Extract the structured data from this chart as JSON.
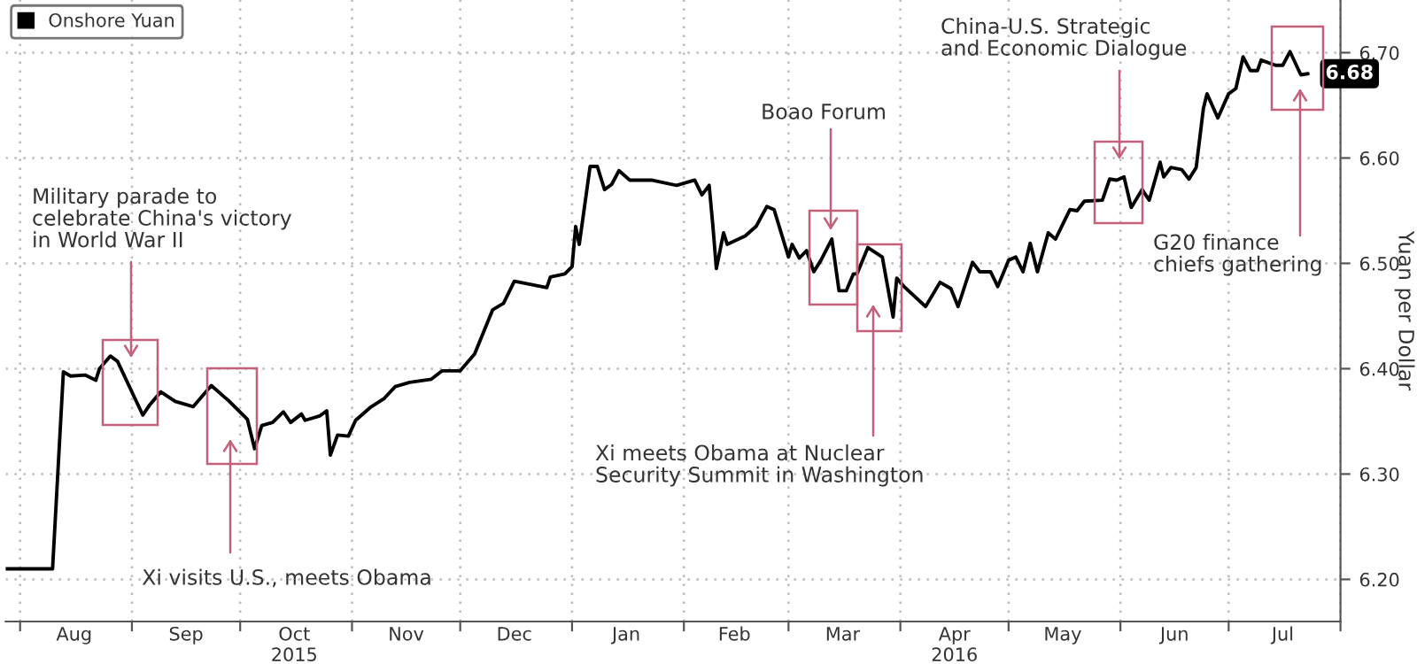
{
  "chart_data": {
    "type": "line",
    "series": [
      {
        "name": "Onshore Yuan",
        "color": "#000000",
        "x": [
          "2015-07-28",
          "2015-08-10",
          "2015-08-13",
          "2015-08-15",
          "2015-08-19",
          "2015-08-22",
          "2015-08-23",
          "2015-08-26",
          "2015-08-28",
          "2015-09-04",
          "2015-09-06",
          "2015-09-09",
          "2015-09-13",
          "2015-09-18",
          "2015-09-23",
          "2015-09-28",
          "2015-10-03",
          "2015-10-05",
          "2015-10-07",
          "2015-10-10",
          "2015-10-13",
          "2015-10-15",
          "2015-10-18",
          "2015-10-19",
          "2015-10-23",
          "2015-10-25",
          "2015-10-26",
          "2015-10-28",
          "2015-10-31",
          "2015-11-02",
          "2015-11-06",
          "2015-11-10",
          "2015-11-13",
          "2015-11-17",
          "2015-11-23",
          "2015-11-26",
          "2015-12-01",
          "2015-12-05",
          "2015-12-10",
          "2015-12-13",
          "2015-12-16",
          "2015-12-25",
          "2015-12-26",
          "2015-12-30",
          "2016-01-01",
          "2016-01-02",
          "2016-01-03",
          "2016-01-06",
          "2016-01-08",
          "2016-01-10",
          "2016-01-12",
          "2016-01-14",
          "2016-01-17",
          "2016-01-23",
          "2016-01-30",
          "2016-02-04",
          "2016-02-06",
          "2016-02-08",
          "2016-02-09",
          "2016-02-10",
          "2016-02-12",
          "2016-02-13",
          "2016-02-18",
          "2016-02-21",
          "2016-02-24",
          "2016-02-26",
          "2016-03-01",
          "2016-03-02",
          "2016-03-04",
          "2016-03-06",
          "2016-03-08",
          "2016-03-10",
          "2016-03-13",
          "2016-03-15",
          "2016-03-17",
          "2016-03-19",
          "2016-03-20",
          "2016-03-23",
          "2016-03-27",
          "2016-03-30",
          "2016-03-31",
          "2016-04-02",
          "2016-04-08",
          "2016-04-12",
          "2016-04-15",
          "2016-04-17",
          "2016-04-21",
          "2016-04-23",
          "2016-04-26",
          "2016-04-28",
          "2016-05-01",
          "2016-05-03",
          "2016-05-05",
          "2016-05-07",
          "2016-05-09",
          "2016-05-12",
          "2016-05-14",
          "2016-05-18",
          "2016-05-20",
          "2016-05-22",
          "2016-05-27",
          "2016-05-29",
          "2016-05-31",
          "2016-06-02",
          "2016-06-04",
          "2016-06-07",
          "2016-06-09",
          "2016-06-12",
          "2016-06-13",
          "2016-06-15",
          "2016-06-18",
          "2016-06-20",
          "2016-06-22",
          "2016-06-24",
          "2016-06-25",
          "2016-06-28",
          "2016-07-01",
          "2016-07-03",
          "2016-07-05",
          "2016-07-07",
          "2016-07-09",
          "2016-07-10",
          "2016-07-14",
          "2016-07-16",
          "2016-07-18",
          "2016-07-21",
          "2016-07-23"
        ],
        "values": [
          6.21,
          6.21,
          6.397,
          6.393,
          6.394,
          6.389,
          6.4,
          6.412,
          6.407,
          6.356,
          6.366,
          6.378,
          6.369,
          6.364,
          6.384,
          6.369,
          6.352,
          6.324,
          6.346,
          6.349,
          6.359,
          6.349,
          6.357,
          6.351,
          6.355,
          6.36,
          6.318,
          6.337,
          6.336,
          6.351,
          6.363,
          6.372,
          6.383,
          6.387,
          6.39,
          6.398,
          6.398,
          6.414,
          6.456,
          6.462,
          6.483,
          6.477,
          6.487,
          6.49,
          6.497,
          6.535,
          6.518,
          6.592,
          6.592,
          6.57,
          6.575,
          6.588,
          6.579,
          6.579,
          6.574,
          6.579,
          6.565,
          6.574,
          6.537,
          6.495,
          6.529,
          6.518,
          6.526,
          6.535,
          6.554,
          6.551,
          6.506,
          6.518,
          6.505,
          6.512,
          6.492,
          6.503,
          6.523,
          6.474,
          6.474,
          6.49,
          6.49,
          6.515,
          6.506,
          6.449,
          6.486,
          6.478,
          6.459,
          6.482,
          6.476,
          6.459,
          6.501,
          6.492,
          6.492,
          6.478,
          6.503,
          6.506,
          6.492,
          6.519,
          6.492,
          6.529,
          6.523,
          6.551,
          6.55,
          6.559,
          6.56,
          6.58,
          6.579,
          6.582,
          6.553,
          6.57,
          6.56,
          6.596,
          6.582,
          6.591,
          6.589,
          6.58,
          6.591,
          6.647,
          6.661,
          6.638,
          6.661,
          6.666,
          6.696,
          6.683,
          6.683,
          6.693,
          6.688,
          6.688,
          6.701,
          6.679,
          6.68
        ],
        "value_labels": [
          null,
          null,
          null,
          null,
          null,
          null,
          null,
          null,
          null,
          null,
          null,
          null,
          null,
          null,
          null,
          null,
          null,
          null,
          null,
          null,
          null,
          null,
          null,
          null,
          null,
          null,
          null,
          null,
          null,
          null,
          null,
          null,
          null,
          null,
          null,
          null,
          null,
          null,
          null,
          null,
          null,
          null,
          null,
          null,
          null,
          null,
          null,
          null,
          null,
          null,
          null,
          null,
          null,
          null,
          null,
          null,
          null,
          null,
          null,
          null,
          null,
          null,
          null,
          null,
          null,
          null,
          null,
          null,
          null,
          null,
          null,
          null,
          null,
          null,
          null,
          null,
          null,
          null,
          null,
          null,
          null,
          null,
          null,
          null,
          null,
          null,
          null,
          null,
          null,
          null,
          null,
          null,
          null,
          null,
          null,
          null,
          null,
          null,
          null,
          null,
          null,
          null,
          null,
          null,
          null,
          null,
          null,
          null,
          null,
          null,
          null,
          null,
          null,
          null,
          null,
          null,
          null,
          null,
          null,
          null,
          null,
          null,
          null,
          null,
          null,
          null,
          "6.68"
        ]
      }
    ],
    "xlim": [
      "2015-07-28",
      "2016-08-01"
    ],
    "xticks": [
      {
        "value": "2015-08-01",
        "label": null
      },
      {
        "value": "2015-08-16",
        "label": "Aug"
      },
      {
        "value": "2015-09-01",
        "label": null
      },
      {
        "value": "2015-09-16",
        "label": "Sep"
      },
      {
        "value": "2015-10-01",
        "label": null
      },
      {
        "value": "2015-10-16",
        "label": "Oct\n2015"
      },
      {
        "value": "2015-11-01",
        "label": null
      },
      {
        "value": "2015-11-16",
        "label": "Nov"
      },
      {
        "value": "2015-12-01",
        "label": null
      },
      {
        "value": "2015-12-16",
        "label": "Dec"
      },
      {
        "value": "2016-01-01",
        "label": null
      },
      {
        "value": "2016-01-16",
        "label": "Jan"
      },
      {
        "value": "2016-02-01",
        "label": null
      },
      {
        "value": "2016-02-15",
        "label": "Feb"
      },
      {
        "value": "2016-03-01",
        "label": null
      },
      {
        "value": "2016-03-16",
        "label": "Mar"
      },
      {
        "value": "2016-04-01",
        "label": null
      },
      {
        "value": "2016-04-16",
        "label": "Apr\n2016"
      },
      {
        "value": "2016-05-01",
        "label": null
      },
      {
        "value": "2016-05-16",
        "label": "May"
      },
      {
        "value": "2016-06-01",
        "label": null
      },
      {
        "value": "2016-06-16",
        "label": "Jun"
      },
      {
        "value": "2016-07-01",
        "label": null
      },
      {
        "value": "2016-07-16",
        "label": "Jul"
      },
      {
        "value": "2016-08-01",
        "label": null
      }
    ],
    "ylim": [
      6.16,
      6.75
    ],
    "yticks": [
      {
        "value": 6.2,
        "label": "6.20"
      },
      {
        "value": 6.3,
        "label": "6.30"
      },
      {
        "value": 6.4,
        "label": "6.40"
      },
      {
        "value": 6.5,
        "label": "6.50"
      },
      {
        "value": 6.6,
        "label": "6.60"
      },
      {
        "value": 6.7,
        "label": "6.70"
      }
    ],
    "ylabel": "Yuan per Dollar",
    "grid": true,
    "legend": "top left",
    "annotations": [
      "Military parade to\ncelebrate China's victory\nin World War II",
      "Xi visits U.S., meets Obama",
      "Boao Forum",
      "Xi meets Obama at Nuclear\nSecurity Summit in Washington",
      "China-U.S. Strategic\nand Economic Dialogue",
      "G20 finance\nchiefs gathering"
    ]
  }
}
